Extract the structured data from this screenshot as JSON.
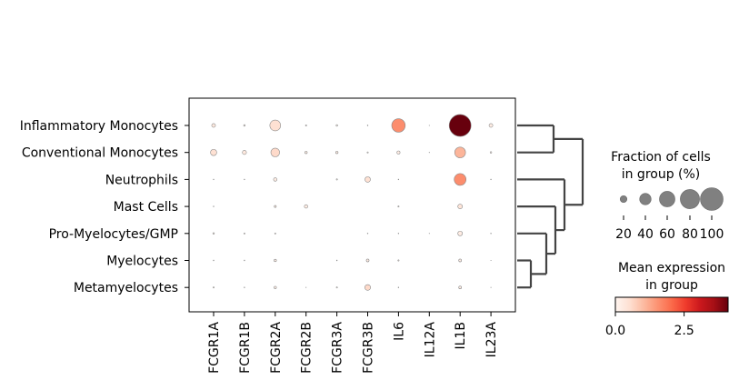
{
  "chart_data": {
    "type": "dotplot",
    "title": "",
    "genes": [
      "FCGR1A",
      "FCGR1B",
      "FCGR2A",
      "FCGR2B",
      "FCGR3A",
      "FCGR3B",
      "IL6",
      "IL12A",
      "IL1B",
      "IL23A"
    ],
    "groups": [
      "Inflammatory Monocytes",
      "Conventional Monocytes",
      "Neutrophils",
      "Mast Cells",
      "Pro-Myelocytes/GMP",
      "Myelocytes",
      "Metamyelocytes"
    ],
    "fraction_of_cells": [
      [
        0.09,
        0.03,
        0.37,
        0.02,
        0.03,
        0.01,
        0.5,
        0.005,
        0.95,
        0.09
      ],
      [
        0.18,
        0.1,
        0.28,
        0.05,
        0.05,
        0.02,
        0.07,
        0.005,
        0.37,
        0.03
      ],
      [
        0.01,
        0.01,
        0.08,
        0.0,
        0.02,
        0.15,
        0.01,
        0.0,
        0.42,
        0.01
      ],
      [
        0.01,
        0.0,
        0.04,
        0.08,
        0.0,
        0.0,
        0.02,
        0.0,
        0.12,
        0.0
      ],
      [
        0.03,
        0.02,
        0.02,
        0.0,
        0.0,
        0.01,
        0.01,
        0.005,
        0.12,
        0.01
      ],
      [
        0.01,
        0.01,
        0.05,
        0.0,
        0.01,
        0.06,
        0.02,
        0.0,
        0.06,
        0.005
      ],
      [
        0.02,
        0.01,
        0.05,
        0.005,
        0.02,
        0.16,
        0.01,
        0.0,
        0.06,
        0.005
      ]
    ],
    "mean_expression": [
      [
        0.3,
        0.1,
        0.5,
        0.1,
        0.1,
        0.1,
        1.6,
        0.1,
        4.1,
        0.2
      ],
      [
        0.5,
        0.3,
        0.6,
        0.2,
        0.2,
        0.1,
        0.2,
        0.1,
        1.1,
        0.1
      ],
      [
        0.1,
        0.1,
        0.2,
        0.0,
        0.1,
        0.5,
        0.1,
        0.0,
        1.6,
        0.1
      ],
      [
        0.1,
        0.0,
        0.2,
        0.2,
        0.0,
        0.0,
        0.1,
        0.0,
        0.4,
        0.0
      ],
      [
        0.1,
        0.1,
        0.1,
        0.0,
        0.0,
        0.1,
        0.1,
        0.1,
        0.2,
        0.1
      ],
      [
        0.1,
        0.1,
        0.2,
        0.0,
        0.1,
        0.2,
        0.1,
        0.0,
        0.2,
        0.1
      ],
      [
        0.1,
        0.1,
        0.2,
        0.1,
        0.1,
        0.6,
        0.1,
        0.0,
        0.2,
        0.1
      ]
    ],
    "colormap": "Reds",
    "color_range": [
      0.0,
      4.1
    ],
    "size_legend": {
      "title": "Fraction of cells\nin group (%)",
      "title_lines": [
        "Fraction of cells",
        "in group (%)"
      ],
      "values": [
        20,
        40,
        60,
        80,
        100
      ]
    },
    "color_legend": {
      "title_lines": [
        "Mean expression",
        "in group"
      ],
      "ticks": [
        "0.0",
        "2.5"
      ],
      "tick_values": [
        0.0,
        2.5
      ]
    },
    "dendrogram": "right",
    "dot_color_legend": "#808080"
  }
}
